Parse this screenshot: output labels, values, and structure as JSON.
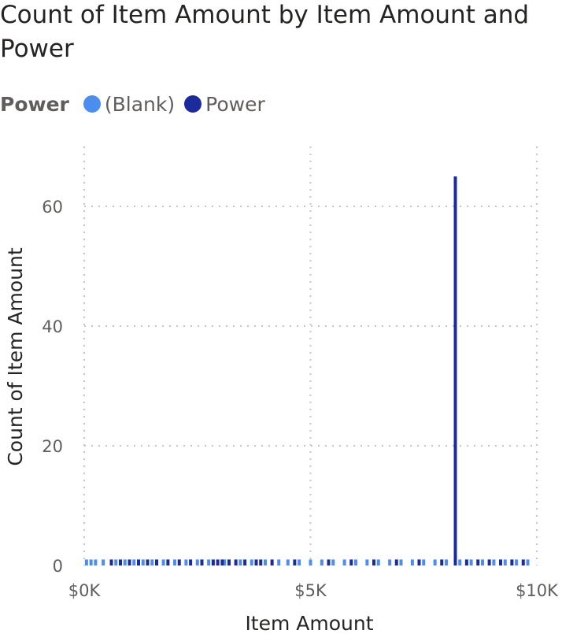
{
  "chart_data": {
    "type": "bar",
    "title": "Count of Item Amount by Item Amount and Power",
    "xlabel": "Item Amount",
    "ylabel": "Count of Item Amount",
    "xlim": [
      0,
      10000
    ],
    "ylim": [
      0,
      70
    ],
    "x_ticks": [
      "$0K",
      "$5K",
      "$10K"
    ],
    "x_tick_values": [
      0,
      5000,
      10000
    ],
    "y_ticks": [
      "0",
      "20",
      "40",
      "60"
    ],
    "y_tick_values": [
      0,
      20,
      40,
      60
    ],
    "grid": true,
    "legend": {
      "title": "Power",
      "position": "top-left",
      "entries": [
        {
          "name": "(Blank)",
          "color": "#4a8ef0"
        },
        {
          "name": "Power",
          "color": "#1b2a9c"
        }
      ]
    },
    "series": [
      {
        "name": "(Blank)",
        "color": "#4a8ef0",
        "points": [
          {
            "x": 50,
            "y": 1
          },
          {
            "x": 150,
            "y": 1
          },
          {
            "x": 250,
            "y": 1
          },
          {
            "x": 420,
            "y": 1
          },
          {
            "x": 700,
            "y": 1
          },
          {
            "x": 900,
            "y": 1
          },
          {
            "x": 1100,
            "y": 1
          },
          {
            "x": 1300,
            "y": 1
          },
          {
            "x": 1500,
            "y": 1
          },
          {
            "x": 1750,
            "y": 1
          },
          {
            "x": 2000,
            "y": 1
          },
          {
            "x": 2250,
            "y": 1
          },
          {
            "x": 2500,
            "y": 1
          },
          {
            "x": 2750,
            "y": 1
          },
          {
            "x": 3100,
            "y": 1
          },
          {
            "x": 3450,
            "y": 1
          },
          {
            "x": 3700,
            "y": 1
          },
          {
            "x": 4000,
            "y": 1
          },
          {
            "x": 4300,
            "y": 1
          },
          {
            "x": 4500,
            "y": 1
          },
          {
            "x": 4750,
            "y": 1
          },
          {
            "x": 5000,
            "y": 1
          },
          {
            "x": 5250,
            "y": 1
          },
          {
            "x": 5500,
            "y": 1
          },
          {
            "x": 5750,
            "y": 1
          },
          {
            "x": 6000,
            "y": 1
          },
          {
            "x": 6250,
            "y": 1
          },
          {
            "x": 6500,
            "y": 1
          },
          {
            "x": 6750,
            "y": 1
          },
          {
            "x": 7000,
            "y": 1
          },
          {
            "x": 7250,
            "y": 1
          },
          {
            "x": 7500,
            "y": 1
          },
          {
            "x": 7750,
            "y": 1
          },
          {
            "x": 8000,
            "y": 1
          },
          {
            "x": 8300,
            "y": 1
          },
          {
            "x": 8550,
            "y": 1
          },
          {
            "x": 8800,
            "y": 1
          },
          {
            "x": 9050,
            "y": 1
          },
          {
            "x": 9300,
            "y": 1
          },
          {
            "x": 9550,
            "y": 1
          },
          {
            "x": 9800,
            "y": 1
          }
        ]
      },
      {
        "name": "Power",
        "color": "#1b2a9c",
        "points": [
          {
            "x": 600,
            "y": 1
          },
          {
            "x": 800,
            "y": 1
          },
          {
            "x": 1000,
            "y": 1
          },
          {
            "x": 1200,
            "y": 1
          },
          {
            "x": 1400,
            "y": 1
          },
          {
            "x": 1600,
            "y": 1
          },
          {
            "x": 1850,
            "y": 1
          },
          {
            "x": 2100,
            "y": 1
          },
          {
            "x": 2350,
            "y": 1
          },
          {
            "x": 2600,
            "y": 1
          },
          {
            "x": 2850,
            "y": 1
          },
          {
            "x": 2950,
            "y": 1
          },
          {
            "x": 3050,
            "y": 1
          },
          {
            "x": 3200,
            "y": 1
          },
          {
            "x": 3350,
            "y": 1
          },
          {
            "x": 3550,
            "y": 1
          },
          {
            "x": 3800,
            "y": 1
          },
          {
            "x": 3900,
            "y": 1
          },
          {
            "x": 4150,
            "y": 1
          },
          {
            "x": 4650,
            "y": 1
          },
          {
            "x": 5400,
            "y": 1
          },
          {
            "x": 5900,
            "y": 1
          },
          {
            "x": 6400,
            "y": 1
          },
          {
            "x": 6900,
            "y": 1
          },
          {
            "x": 7400,
            "y": 1
          },
          {
            "x": 7900,
            "y": 1
          },
          {
            "x": 8200,
            "y": 65
          },
          {
            "x": 8450,
            "y": 1
          },
          {
            "x": 8700,
            "y": 1
          },
          {
            "x": 8950,
            "y": 1
          },
          {
            "x": 9200,
            "y": 1
          },
          {
            "x": 9450,
            "y": 1
          },
          {
            "x": 9700,
            "y": 1
          }
        ]
      }
    ]
  }
}
